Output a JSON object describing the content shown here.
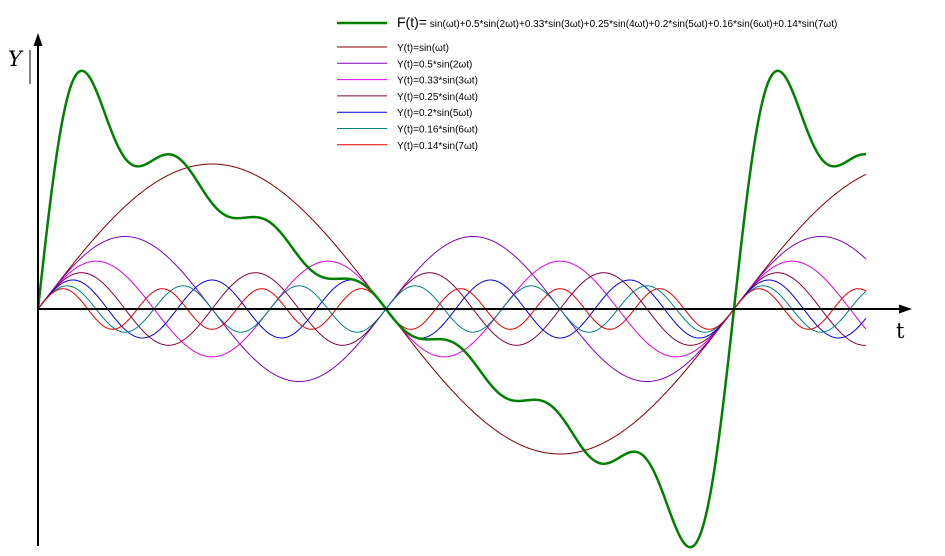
{
  "chart_data": {
    "type": "line",
    "xlabel": "t",
    "ylabel": "Y",
    "x_range_periods": [
      0,
      1.2
    ],
    "y_range": [
      -1.7,
      1.7
    ],
    "grid": false,
    "legend_position": "top-right",
    "series": [
      {
        "name": "F(t)= sin(ωt)+0.5*sin(2ωt)+0.33*sin(3ωt)+0.25*sin(4ωt)+0.2*sin(5ωt)+0.16*sin(6ωt)+0.14*sin(7ωt)",
        "name_prefix": "F(t)=",
        "name_rest": " sin(ωt)+0.5*sin(2ωt)+0.33*sin(3ωt)+0.25*sin(4ωt)+0.2*sin(5ωt)+0.16*sin(6ωt)+0.14*sin(7ωt)",
        "components": [
          [
            1,
            1
          ],
          [
            0.5,
            2
          ],
          [
            0.33,
            3
          ],
          [
            0.25,
            4
          ],
          [
            0.2,
            5
          ],
          [
            0.16,
            6
          ],
          [
            0.14,
            7
          ]
        ],
        "color": "#008000",
        "bold": true
      },
      {
        "name": "Y(t)=sin(ωt)",
        "amplitude": 1,
        "harmonic": 1,
        "color": "#800000"
      },
      {
        "name": "Y(t)=0.5*sin(2ωt)",
        "amplitude": 0.5,
        "harmonic": 2,
        "color": "#8000c0"
      },
      {
        "name": "Y(t)=0.33*sin(3ωt)",
        "amplitude": 0.33,
        "harmonic": 3,
        "color": "#e000e0"
      },
      {
        "name": "Y(t)=0.25*sin(4ωt)",
        "amplitude": 0.25,
        "harmonic": 4,
        "color": "#800040"
      },
      {
        "name": "Y(t)=0.2*sin(5ωt)",
        "amplitude": 0.2,
        "harmonic": 5,
        "color": "#0000e0"
      },
      {
        "name": "Y(t)=0.16*sin(6ωt)",
        "amplitude": 0.16,
        "harmonic": 6,
        "color": "#008080"
      },
      {
        "name": "Y(t)=0.14*sin(7ωt)",
        "amplitude": 0.14,
        "harmonic": 7,
        "color": "#e00000"
      }
    ]
  }
}
